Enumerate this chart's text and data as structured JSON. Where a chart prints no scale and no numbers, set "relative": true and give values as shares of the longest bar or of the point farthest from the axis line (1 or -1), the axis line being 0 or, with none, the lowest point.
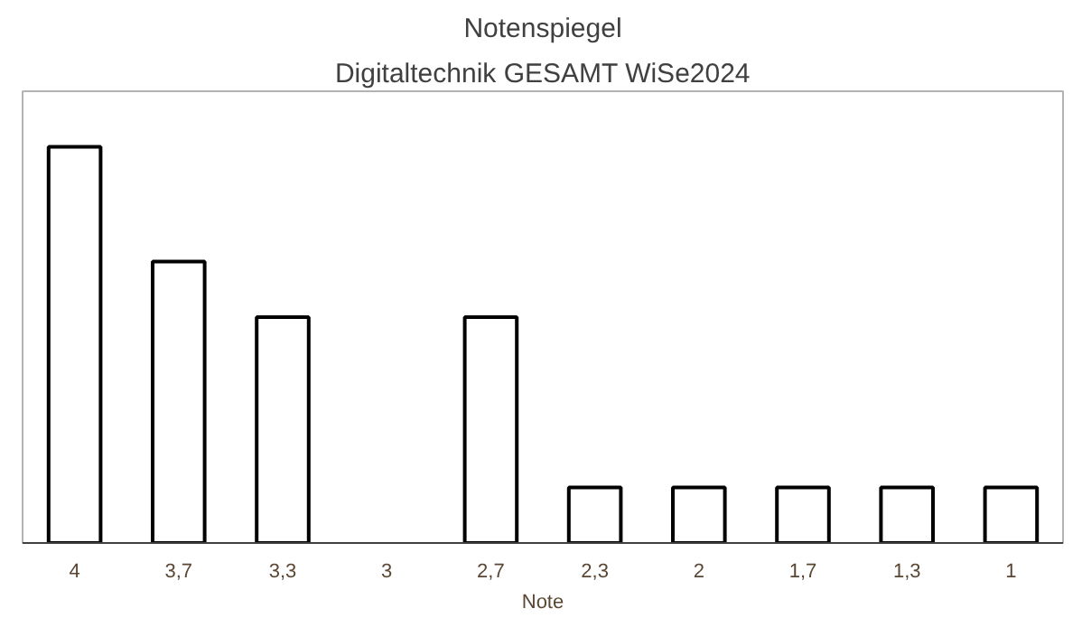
{
  "chart_data": {
    "type": "bar",
    "title": "Notenspiegel",
    "subtitle": "Digitaltechnik GESAMT WiSe2024",
    "xlabel": "Note",
    "categories": [
      "4",
      "3,7",
      "3,3",
      "3",
      "2,7",
      "2,3",
      "2",
      "1,7",
      "1,3",
      "1"
    ],
    "values": [
      1,
      0.71,
      0.57,
      0,
      0.57,
      0.14,
      0.14,
      0.14,
      0.14,
      0.14
    ],
    "color": "#ffffff",
    "relative": true,
    "grid": false
  }
}
